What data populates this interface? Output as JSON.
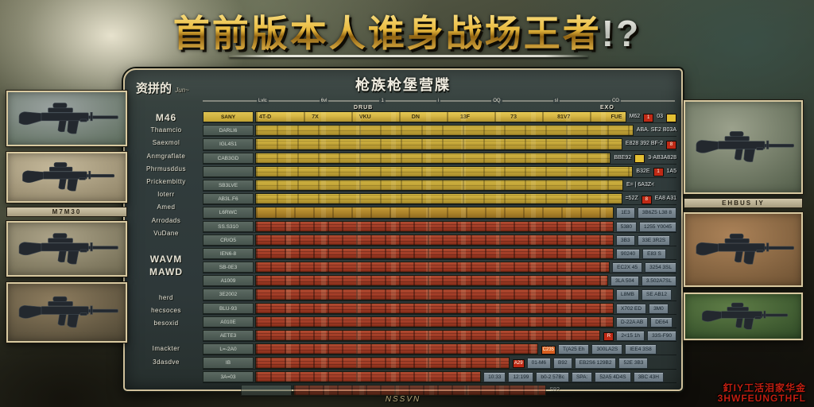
{
  "title": {
    "main": "首前版本人谁身战场王者",
    "suffix": "!?"
  },
  "panel": {
    "header": "枪族枪堡营牒",
    "corner_label": "资拼的",
    "corner_sub": "Jun~",
    "drub_label": "DRUB",
    "exo_label": "EXO",
    "footer": "NSSVN",
    "scale_ticks": [
      "",
      "Lvlc",
      "6vl",
      "1",
      "i",
      "OQ",
      "sl",
      "CO",
      ""
    ]
  },
  "colors": {
    "gold_bar": "#c2a438",
    "red_bar": "#a33d27",
    "chip_red": "#bf2a16",
    "chip_yellow": "#e3bf33",
    "chip_orange": "#d85f20",
    "title_gold": "#e8b93e"
  },
  "left_names": [
    {
      "t": "M46",
      "big": true
    },
    {
      "t": "Thaamcio"
    },
    {
      "t": "Saexmol"
    },
    {
      "t": "Anmgraflate"
    },
    {
      "t": "Phrmusddus"
    },
    {
      "t": "Prickembitty"
    },
    {
      "t": "loterr"
    },
    {
      "t": "Amed"
    },
    {
      "t": "Arrodads"
    },
    {
      "t": "VuDane"
    },
    {
      "t": ""
    },
    {
      "t": "WAVM",
      "big": true
    },
    {
      "t": "MAWD",
      "big": true
    },
    {
      "t": ""
    },
    {
      "t": "herd"
    },
    {
      "t": "hecsoces"
    },
    {
      "t": "besoxid"
    },
    {
      "t": ""
    },
    {
      "t": "Imackter"
    },
    {
      "t": "3dasdve"
    },
    {
      "t": ""
    }
  ],
  "table": {
    "header_cells": [
      "4T-D",
      "7X",
      "VKU",
      "DN",
      "13F",
      "73",
      "81V7",
      "FUE"
    ],
    "rows": [
      {
        "label": "SANY",
        "color": "header",
        "bar": 87,
        "right": [
          {
            "t": "M62"
          },
          {
            "chip": "#bf2a16",
            "t": "1"
          },
          {
            "t": "03"
          },
          {
            "chip": "#e3bf33",
            "t": ""
          }
        ]
      },
      {
        "label": "DARLI6",
        "color": "gold",
        "bar": 82,
        "right": [
          {
            "t": "ABA. SE2 B03A"
          }
        ]
      },
      {
        "label": "IGL4S1",
        "color": "gold",
        "bar": 81,
        "right": [
          {
            "t": "E828 392 BF-2"
          },
          {
            "chip": "#bf2a16",
            "t": "8"
          }
        ]
      },
      {
        "label": "CAB3GD",
        "color": "gold",
        "bar": 80,
        "right": [
          {
            "t": "BBE92"
          },
          {
            "chip": "#e3bf33",
            "t": ""
          },
          {
            "t": "3-AB3A828"
          }
        ]
      },
      {
        "label": "",
        "color": "gold",
        "bar": 79,
        "right": [
          {
            "t": "B32E"
          },
          {
            "chip": "#bf2a16",
            "t": "1"
          },
          {
            "t": "1A5"
          }
        ]
      },
      {
        "label": "SB3LVE",
        "color": "gold",
        "bar": 76,
        "right": [
          {
            "t": "E= | 6A3Z<"
          }
        ]
      },
      {
        "label": "AB3L.F6",
        "color": "gold",
        "bar": 78,
        "right": [
          {
            "t": "=52Z"
          },
          {
            "chip": "#bf2a16",
            "t": "8"
          },
          {
            "t": "EA8 A31"
          }
        ]
      },
      {
        "label": "L6RWC",
        "color": "golddark",
        "bar": 76,
        "cells": [
          "1E3",
          "3B6Z5 L38 8"
        ]
      },
      {
        "label": "SS.S310",
        "color": "red",
        "bar": 74,
        "cells": [
          "5380",
          "1255 Y0045"
        ]
      },
      {
        "label": "CR/O5",
        "color": "red",
        "bar": 74,
        "cells": [
          "3B3",
          "33E 3R2S"
        ]
      },
      {
        "label": "IEN6-8",
        "color": "red",
        "bar": 74,
        "cells": [
          "90240",
          "E83 S"
        ]
      },
      {
        "label": "SB-0E3",
        "color": "red",
        "bar": 74,
        "cells": [
          "EC2X 45",
          "3254 3SL"
        ]
      },
      {
        "label": "A1009",
        "color": "red",
        "bar": 74,
        "cells": [
          "3LA 504",
          "3.502A7SL"
        ]
      },
      {
        "label": "3E2002",
        "color": "red",
        "bar": 74,
        "cells": [
          "L8MB",
          "SE AB12"
        ]
      },
      {
        "label": "BLU-93",
        "color": "red",
        "bar": 74,
        "cells": [
          "X702 ED",
          "3M0"
        ]
      },
      {
        "label": "A010E",
        "color": "red",
        "bar": 74,
        "cells": [
          "D-22A AB",
          "DE64"
        ]
      },
      {
        "label": "AETE3",
        "color": "red",
        "bar": 72,
        "right": [
          {
            "chip": "#bf2a16",
            "t": "R"
          }
        ],
        "cells": [
          "2<15 1h",
          "33S-F90"
        ]
      },
      {
        "label": "L=-2A0",
        "color": "red",
        "bar": 58,
        "right": [
          {
            "chip": "#d85f20",
            "t": "C235"
          }
        ],
        "cells": [
          "T(A25 Eh",
          "300LA2S",
          "IEE4 3S8"
        ]
      },
      {
        "label": "IB",
        "color": "red",
        "bar": 52,
        "right": [
          {
            "chip": "#bf2a16",
            "t": "A29"
          }
        ],
        "cells": [
          "01-M6",
          "B92",
          "EB2S6 129B2",
          "52E 3B3"
        ]
      },
      {
        "label": "3A=03",
        "color": "red",
        "bar": 46,
        "cells": [
          "10:33",
          "12:199",
          "b0-2 57Bc",
          "SPA:",
          "52A5 4D4S",
          "3BC 43H"
        ]
      },
      {
        "label": "",
        "color": "red",
        "bar": 74,
        "partial": true,
        "right": [
          {
            "t": "S9?"
          }
        ]
      }
    ]
  },
  "left_gallery": {
    "caption": "M7M30",
    "caption_after": 2,
    "frames": [
      {
        "c1": "#9aa2a0",
        "c2": "#5c6c5c"
      },
      {
        "c1": "#c4b89a",
        "c2": "#8d8165"
      },
      {
        "c1": "#aca388",
        "c2": "#6e6850"
      },
      {
        "c1": "#8d7c5e",
        "c2": "#4e4634"
      }
    ]
  },
  "right_gallery": {
    "caption": "EHBUS IY",
    "caption_after": 1,
    "frames": [
      {
        "c1": "#9ba18c",
        "c2": "#535e4a"
      },
      {
        "c1": "#ab8258",
        "c2": "#6e5233"
      },
      {
        "c1": "#5e7c46",
        "c2": "#2f4a26"
      }
    ]
  },
  "watermark": {
    "line1": "釘IY工活泪家华金",
    "line2": "3HWFEUNGTHFL"
  }
}
